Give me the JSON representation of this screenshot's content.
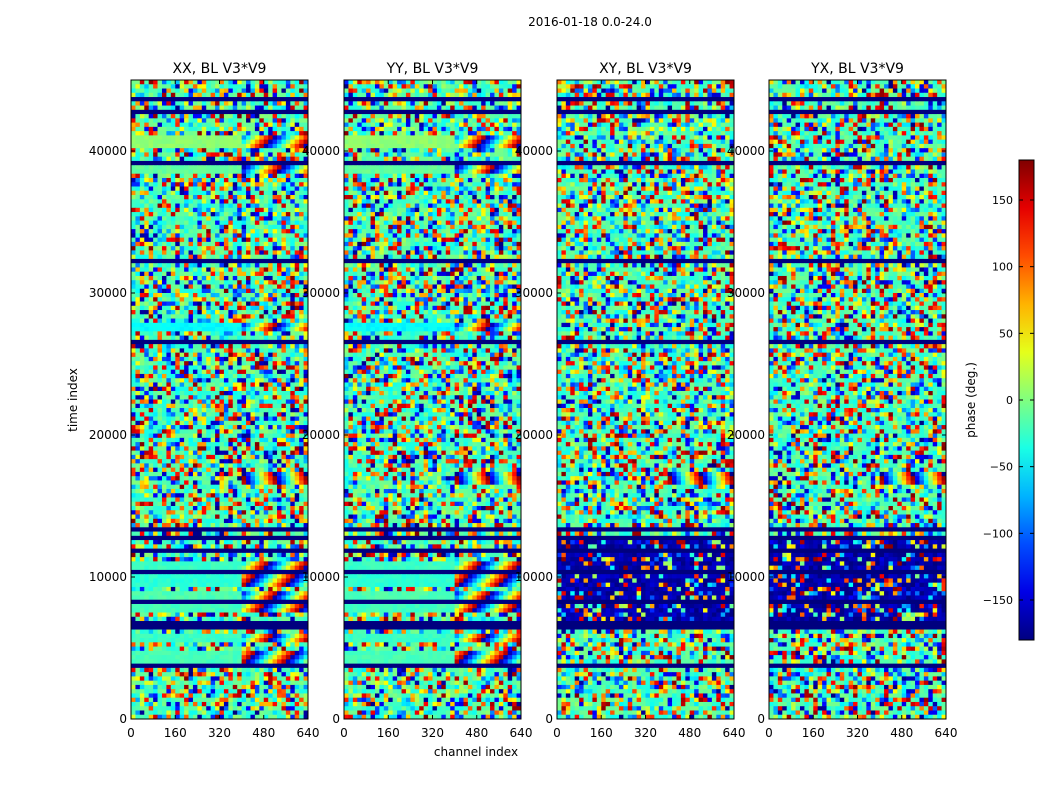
{
  "chart_data": {
    "type": "heatmap",
    "suptitle": "2016-01-18 0.0-24.0",
    "xlabel": "channel index",
    "ylabel": "time index",
    "xlim": [
      0,
      640
    ],
    "ylim": [
      0,
      45000
    ],
    "xticks": [
      0,
      160,
      320,
      480,
      640
    ],
    "xtick_labels": [
      "0",
      "160",
      "320",
      "480",
      "640"
    ],
    "yticks": [
      0,
      10000,
      20000,
      30000,
      40000
    ],
    "ytick_labels": [
      "0",
      "10000",
      "20000",
      "30000",
      "40000"
    ],
    "panels": [
      {
        "title": "XX, BL V3*V9",
        "pol": "XX"
      },
      {
        "title": "YY, BL V3*V9",
        "pol": "YY"
      },
      {
        "title": "XY, BL V3*V9",
        "pol": "XY"
      },
      {
        "title": "YX, BL V3*V9",
        "pol": "YX"
      }
    ],
    "colorbar": {
      "label": "phase (deg.)",
      "colormap": "jet",
      "vmin": -180,
      "vmax": 180,
      "ticks": [
        150,
        100,
        50,
        0,
        -50,
        -100,
        -150
      ],
      "tick_labels": [
        "150",
        "100",
        "50",
        "0",
        "−50",
        "−100",
        "−150"
      ]
    },
    "flagged_time_bands": [
      [
        3500,
        4000
      ],
      [
        6400,
        6900
      ],
      [
        7400,
        7600
      ],
      [
        8200,
        8400
      ],
      [
        9000,
        9150
      ],
      [
        10200,
        10400
      ],
      [
        11000,
        11200
      ],
      [
        11700,
        11900
      ],
      [
        12500,
        12800
      ],
      [
        13200,
        13400
      ],
      [
        19400,
        19550
      ],
      [
        26400,
        26600
      ],
      [
        32200,
        32400
      ],
      [
        34700,
        34900
      ],
      [
        39100,
        39300
      ],
      [
        42600,
        43000
      ],
      [
        43600,
        43900
      ]
    ],
    "uniform_phase_bands": [
      {
        "range": [
          4000,
          4800
        ],
        "phase_deg": -20
      },
      {
        "range": [
          5400,
          6000
        ],
        "phase_deg": -25
      },
      {
        "range": [
          7600,
          8200
        ],
        "phase_deg": -22
      },
      {
        "range": [
          8400,
          9000
        ],
        "phase_deg": -18
      },
      {
        "range": [
          9200,
          10100
        ],
        "phase_deg": -30
      },
      {
        "range": [
          10500,
          11000
        ],
        "phase_deg": -25
      },
      {
        "range": [
          27200,
          27800
        ],
        "phase_deg": -45
      },
      {
        "range": [
          40300,
          41200
        ],
        "phase_deg": 5
      },
      {
        "range": [
          38500,
          38900
        ],
        "phase_deg": -10
      }
    ],
    "fringe_feature": {
      "time_range": [
        16600,
        17300
      ],
      "channel_range": [
        400,
        640
      ]
    }
  }
}
